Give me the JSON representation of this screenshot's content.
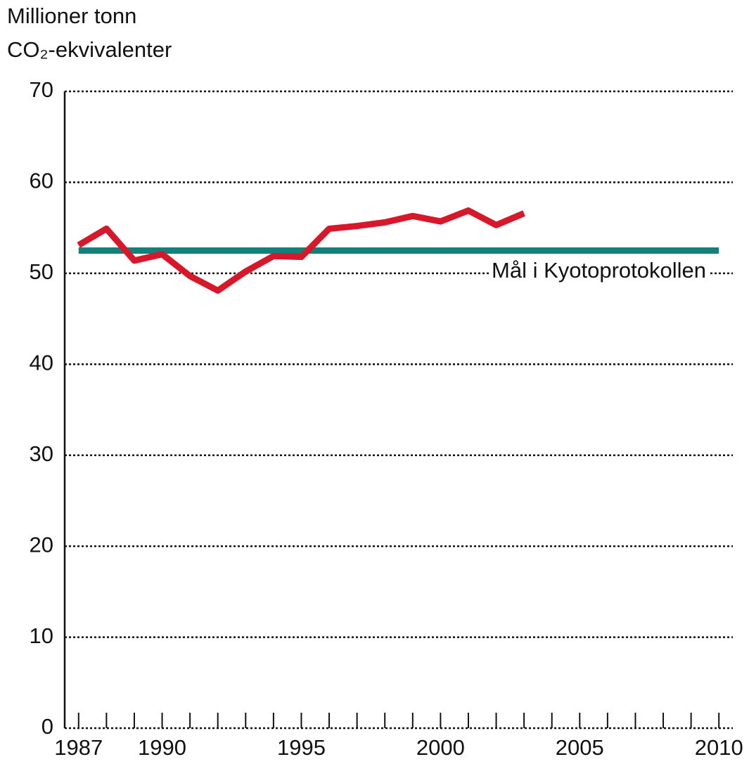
{
  "chart_data": {
    "type": "line",
    "y_label_lines": [
      "Millioner tonn",
      "CO₂-ekvivalenter"
    ],
    "annotation": "Mål i Kyotoprotokollen",
    "series": [
      {
        "color": "#d7182a",
        "x": [
          1987,
          1988,
          1989,
          1990,
          1991,
          1992,
          1993,
          1994,
          1995,
          1996,
          1997,
          1998,
          1999,
          2000,
          2001,
          2002,
          2003
        ],
        "values": [
          53.1,
          54.9,
          51.4,
          52.1,
          49.7,
          48.1,
          50.2,
          51.9,
          51.8,
          54.9,
          55.2,
          55.6,
          56.3,
          55.7,
          56.9,
          55.3,
          56.6
        ]
      },
      {
        "color": "#14807a",
        "x": [
          1987,
          2010
        ],
        "values": [
          52.5,
          52.5
        ]
      }
    ],
    "xlim": [
      1986.5,
      2010.5
    ],
    "xticks": [
      1987,
      1990,
      1995,
      2000,
      2005,
      2010
    ],
    "xminorticks": [
      1987,
      1988,
      1989,
      1990,
      1991,
      1992,
      1993,
      1994,
      1995,
      1996,
      1997,
      1998,
      1999,
      2000,
      2001,
      2002,
      2003,
      2004,
      2005,
      2006,
      2007,
      2008,
      2009,
      2010
    ],
    "ylim": [
      0,
      70
    ],
    "yticks": [
      0,
      10,
      20,
      30,
      40,
      50,
      60,
      70
    ],
    "grid": true
  }
}
